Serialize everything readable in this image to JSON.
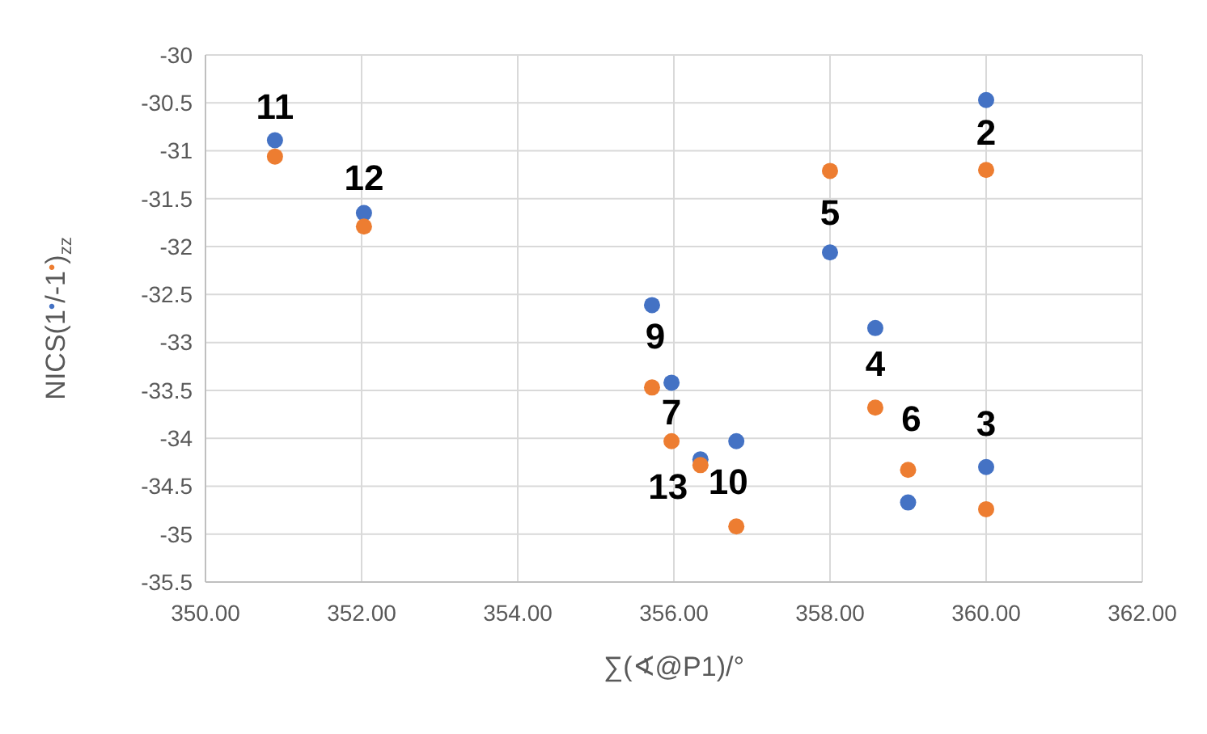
{
  "chart_data": {
    "type": "scatter",
    "xlabel": "∑(∢@P1)/°",
    "ylabel": "NICS(1$^{•}$/-1$^{•}$)$_{zz}$",
    "xlim": [
      350,
      362
    ],
    "xticks": [
      {
        "value": 350,
        "label": "350.00"
      },
      {
        "value": 352,
        "label": "352.00"
      },
      {
        "value": 354,
        "label": "354.00"
      },
      {
        "value": 356,
        "label": "356.00"
      },
      {
        "value": 358,
        "label": "358.00"
      },
      {
        "value": 360,
        "label": "360.00"
      },
      {
        "value": 362,
        "label": "362.00"
      }
    ],
    "ylim": [
      -35.5,
      -30
    ],
    "yticks": [
      -35.5,
      -35,
      -34.5,
      -34,
      -33.5,
      -33,
      -32.5,
      -32,
      -31.5,
      -31,
      -30.5,
      -30
    ],
    "grid": true,
    "marker": "circle",
    "series": [
      {
        "color": "#4472c4",
        "x": [
          350.89,
          352.03,
          355.72,
          355.97,
          356.34,
          356.8,
          358,
          358.58,
          359,
          360,
          360
        ],
        "values": [
          -30.89,
          -31.65,
          -32.61,
          -33.42,
          -34.22,
          -34.03,
          -32.06,
          -32.85,
          -34.67,
          -34.3,
          -30.47
        ]
      },
      {
        "color": "#ed7d31",
        "x": [
          350.89,
          352.03,
          355.72,
          355.97,
          356.34,
          356.8,
          358,
          358.58,
          359,
          360,
          360
        ],
        "values": [
          -31.06,
          -31.79,
          -33.47,
          -34.03,
          -34.28,
          -34.92,
          -31.21,
          -33.68,
          -34.33,
          -34.74,
          -31.2
        ]
      }
    ],
    "annotations": [
      {
        "text": "11",
        "x": 350.89,
        "y": -30.89
      },
      {
        "text": "12",
        "x": 352.03,
        "y": -31.65
      },
      {
        "text": "9",
        "x": 355.72,
        "y": -32.61
      },
      {
        "text": "7",
        "x": 355.97,
        "y": -33.42
      },
      {
        "text": "13",
        "x": 356.34,
        "y": -34.28
      },
      {
        "text": "10",
        "x": 356.8,
        "y": -34.03
      },
      {
        "text": "5",
        "x": 358,
        "y": -32.06
      },
      {
        "text": "4",
        "x": 358.58,
        "y": -32.85
      },
      {
        "text": "6",
        "x": 359,
        "y": -34.33
      },
      {
        "text": "3",
        "x": 360,
        "y": -34.3
      },
      {
        "text": "2",
        "x": 360,
        "y": -30.47
      }
    ]
  }
}
